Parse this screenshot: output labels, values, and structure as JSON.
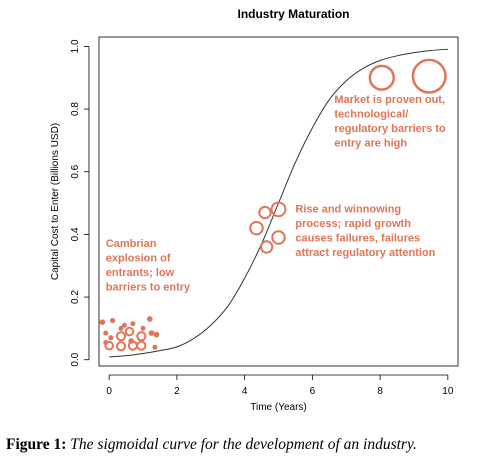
{
  "chart_data": {
    "type": "line",
    "title": "Industry Maturation",
    "xlabel": "Time (Years)",
    "ylabel": "Capital Cost to Enter (Billions USD)",
    "xlim": [
      -0.3,
      10.3
    ],
    "ylim": [
      -0.02,
      1.03
    ],
    "xticks": [
      "0",
      "2",
      "4",
      "6",
      "8",
      "10"
    ],
    "yticks": [
      "0.0",
      "0.2",
      "0.4",
      "0.6",
      "0.8",
      "1.0"
    ],
    "grid": false,
    "series": [
      {
        "curve": "sigmoid",
        "color": "#333333",
        "x": [
          0,
          0.5,
          1,
          1.5,
          2,
          2.5,
          3,
          3.5,
          4,
          4.5,
          5,
          5.5,
          6,
          6.5,
          7,
          7.5,
          8,
          8.5,
          9,
          9.5,
          10
        ],
        "y": [
          0.009,
          0.013,
          0.02,
          0.029,
          0.041,
          0.068,
          0.11,
          0.17,
          0.26,
          0.37,
          0.5,
          0.63,
          0.74,
          0.83,
          0.89,
          0.93,
          0.955,
          0.97,
          0.98,
          0.987,
          0.991
        ]
      }
    ],
    "bubbles": {
      "color": "#e07558",
      "points": [
        {
          "x": -0.2,
          "y": 0.12,
          "r": 0.009,
          "filled": true
        },
        {
          "x": 0.1,
          "y": 0.125,
          "r": 0.008,
          "filled": true
        },
        {
          "x": 0.45,
          "y": 0.11,
          "r": 0.008,
          "filled": true
        },
        {
          "x": 0.7,
          "y": 0.115,
          "r": 0.008,
          "filled": true
        },
        {
          "x": 1.2,
          "y": 0.13,
          "r": 0.009,
          "filled": true
        },
        {
          "x": 0.35,
          "y": 0.1,
          "r": 0.008,
          "filled": true
        },
        {
          "x": 0.6,
          "y": 0.09,
          "r": 0.012,
          "filled": false
        },
        {
          "x": 1.0,
          "y": 0.1,
          "r": 0.008,
          "filled": true
        },
        {
          "x": 1.25,
          "y": 0.085,
          "r": 0.009,
          "filled": true
        },
        {
          "x": -0.1,
          "y": 0.085,
          "r": 0.008,
          "filled": true
        },
        {
          "x": 0.05,
          "y": 0.07,
          "r": 0.008,
          "filled": true
        },
        {
          "x": 0.35,
          "y": 0.075,
          "r": 0.013,
          "filled": false
        },
        {
          "x": 0.95,
          "y": 0.075,
          "r": 0.013,
          "filled": false
        },
        {
          "x": 1.4,
          "y": 0.08,
          "r": 0.009,
          "filled": true
        },
        {
          "x": -0.1,
          "y": 0.055,
          "r": 0.008,
          "filled": true
        },
        {
          "x": 0.65,
          "y": 0.06,
          "r": 0.009,
          "filled": true
        },
        {
          "x": 0.0,
          "y": 0.045,
          "r": 0.012,
          "filled": false
        },
        {
          "x": 0.35,
          "y": 0.043,
          "r": 0.013,
          "filled": false
        },
        {
          "x": 0.7,
          "y": 0.045,
          "r": 0.013,
          "filled": false
        },
        {
          "x": 0.95,
          "y": 0.045,
          "r": 0.013,
          "filled": false
        },
        {
          "x": 1.35,
          "y": 0.04,
          "r": 0.008,
          "filled": true
        },
        {
          "x": 4.6,
          "y": 0.47,
          "r": 0.018,
          "filled": false
        },
        {
          "x": 5.0,
          "y": 0.48,
          "r": 0.022,
          "filled": false
        },
        {
          "x": 4.35,
          "y": 0.42,
          "r": 0.02,
          "filled": false
        },
        {
          "x": 5.0,
          "y": 0.39,
          "r": 0.02,
          "filled": false
        },
        {
          "x": 4.65,
          "y": 0.36,
          "r": 0.018,
          "filled": false
        },
        {
          "x": 8.05,
          "y": 0.9,
          "r": 0.038,
          "filled": false
        },
        {
          "x": 9.45,
          "y": 0.905,
          "r": 0.052,
          "filled": false
        }
      ]
    },
    "annotations": [
      {
        "lines": [
          "Cambrian",
          "explosion of",
          "entrants; low",
          "barriers to entry"
        ],
        "x": -0.1,
        "y": 0.36
      },
      {
        "lines": [
          "Rise and winnowing",
          "process; rapid growth",
          "causes failures, failures",
          "attract regulatory attention"
        ],
        "x": 5.5,
        "y": 0.47
      },
      {
        "lines": [
          "Market is proven out,",
          "technological/",
          "regulatory barriers to",
          "entry are high"
        ],
        "x": 6.65,
        "y": 0.82
      }
    ]
  },
  "caption": {
    "label": "Figure 1:",
    "text": "The sigmoidal curve for the development of an industry."
  }
}
